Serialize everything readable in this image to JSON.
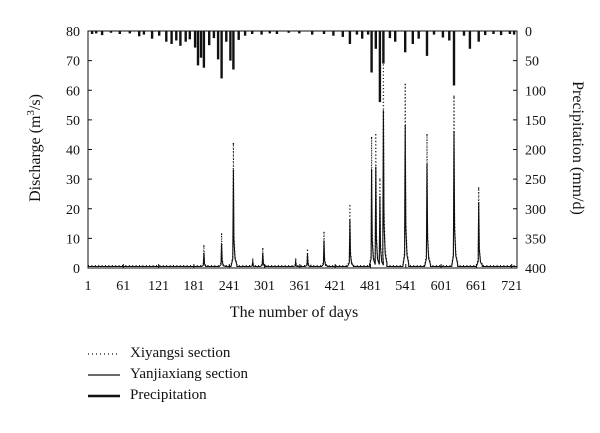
{
  "chart_data": {
    "type": "line",
    "xlabel": "The number of days",
    "ylabel_left": {
      "main": "Discharge (m",
      "sup": "3",
      "end": "/s)"
    },
    "ylabel_right": "Precipitation (mm/d)",
    "x_ticks": [
      "1",
      "61",
      "121",
      "181",
      "241",
      "301",
      "361",
      "421",
      "481",
      "541",
      "601",
      "661",
      "721"
    ],
    "y_left_ticks": [
      "0",
      "10",
      "20",
      "30",
      "40",
      "50",
      "60",
      "70",
      "80"
    ],
    "y_right_ticks": [
      "0",
      "50",
      "100",
      "150",
      "200",
      "250",
      "300",
      "350",
      "400"
    ],
    "xlim": [
      1,
      730
    ],
    "ylim_left": [
      0,
      80
    ],
    "ylim_right": [
      400,
      0
    ],
    "legend": [
      {
        "label": "Xiyangsi section",
        "style": "dotted"
      },
      {
        "label": "Yanjiaxiang section",
        "style": "solid"
      },
      {
        "label": "Precipitation",
        "style": "bold"
      }
    ],
    "series": [
      {
        "name": "Xiyangsi section",
        "peaks": [
          [
            198,
            7.5
          ],
          [
            228,
            11.5
          ],
          [
            248,
            42
          ],
          [
            281,
            3
          ],
          [
            298,
            6.5
          ],
          [
            354,
            3
          ],
          [
            374,
            6
          ],
          [
            402,
            12
          ],
          [
            446,
            21
          ],
          [
            483,
            44
          ],
          [
            490,
            45
          ],
          [
            497,
            30
          ],
          [
            503,
            72
          ],
          [
            540,
            62
          ],
          [
            577,
            45
          ],
          [
            623,
            58
          ],
          [
            665,
            27
          ]
        ]
      },
      {
        "name": "Yanjiaxiang section",
        "peaks": [
          [
            198,
            5
          ],
          [
            228,
            8
          ],
          [
            248,
            33
          ],
          [
            281,
            2
          ],
          [
            298,
            5
          ],
          [
            354,
            2
          ],
          [
            374,
            4.5
          ],
          [
            402,
            9
          ],
          [
            446,
            16
          ],
          [
            483,
            33
          ],
          [
            490,
            34
          ],
          [
            497,
            24
          ],
          [
            503,
            53
          ],
          [
            540,
            48
          ],
          [
            577,
            35
          ],
          [
            623,
            46
          ],
          [
            665,
            22
          ]
        ]
      },
      {
        "name": "Precipitation",
        "bars": [
          [
            8,
            5
          ],
          [
            15,
            4
          ],
          [
            25,
            7
          ],
          [
            40,
            3
          ],
          [
            55,
            5
          ],
          [
            72,
            4
          ],
          [
            88,
            9
          ],
          [
            96,
            6
          ],
          [
            110,
            13
          ],
          [
            122,
            8
          ],
          [
            134,
            18
          ],
          [
            143,
            22
          ],
          [
            151,
            16
          ],
          [
            158,
            25
          ],
          [
            167,
            18
          ],
          [
            174,
            14
          ],
          [
            183,
            28
          ],
          [
            188,
            58
          ],
          [
            193,
            45
          ],
          [
            198,
            62
          ],
          [
            207,
            24
          ],
          [
            215,
            12
          ],
          [
            222,
            48
          ],
          [
            228,
            80
          ],
          [
            236,
            18
          ],
          [
            243,
            50
          ],
          [
            248,
            65
          ],
          [
            257,
            15
          ],
          [
            268,
            8
          ],
          [
            280,
            5
          ],
          [
            296,
            6
          ],
          [
            310,
            4
          ],
          [
            322,
            5
          ],
          [
            342,
            3
          ],
          [
            360,
            4
          ],
          [
            382,
            6
          ],
          [
            402,
            5
          ],
          [
            418,
            8
          ],
          [
            434,
            10
          ],
          [
            446,
            22
          ],
          [
            458,
            6
          ],
          [
            467,
            13
          ],
          [
            477,
            6
          ],
          [
            483,
            70
          ],
          [
            490,
            30
          ],
          [
            497,
            120
          ],
          [
            503,
            55
          ],
          [
            514,
            12
          ],
          [
            523,
            18
          ],
          [
            540,
            36
          ],
          [
            553,
            22
          ],
          [
            563,
            13
          ],
          [
            577,
            42
          ],
          [
            589,
            6
          ],
          [
            604,
            11
          ],
          [
            615,
            16
          ],
          [
            623,
            92
          ],
          [
            640,
            8
          ],
          [
            650,
            30
          ],
          [
            665,
            18
          ],
          [
            676,
            7
          ],
          [
            690,
            5
          ],
          [
            703,
            7
          ],
          [
            718,
            5
          ],
          [
            725,
            6
          ]
        ]
      }
    ]
  }
}
